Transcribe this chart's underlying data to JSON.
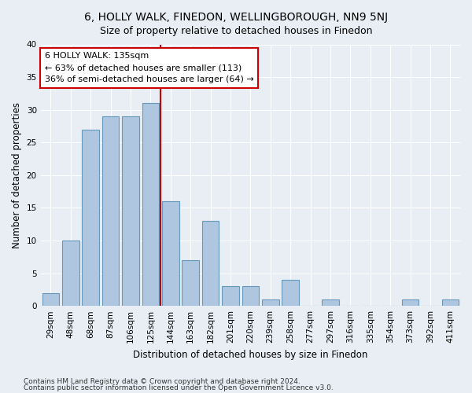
{
  "title": "6, HOLLY WALK, FINEDON, WELLINGBOROUGH, NN9 5NJ",
  "subtitle": "Size of property relative to detached houses in Finedon",
  "xlabel": "Distribution of detached houses by size in Finedon",
  "ylabel": "Number of detached properties",
  "categories": [
    "29sqm",
    "48sqm",
    "68sqm",
    "87sqm",
    "106sqm",
    "125sqm",
    "144sqm",
    "163sqm",
    "182sqm",
    "201sqm",
    "220sqm",
    "239sqm",
    "258sqm",
    "277sqm",
    "297sqm",
    "316sqm",
    "335sqm",
    "354sqm",
    "373sqm",
    "392sqm",
    "411sqm"
  ],
  "values": [
    2,
    10,
    27,
    29,
    29,
    31,
    16,
    7,
    13,
    3,
    3,
    1,
    4,
    0,
    1,
    0,
    0,
    0,
    1,
    0,
    1
  ],
  "bar_color": "#aec6e0",
  "bar_edge_color": "#6699bb",
  "vline_x_index": 6,
  "vline_color": "#cc0000",
  "annotation_line1": "6 HOLLY WALK: 135sqm",
  "annotation_line2": "← 63% of detached houses are smaller (113)",
  "annotation_line3": "36% of semi-detached houses are larger (64) →",
  "annotation_box_facecolor": "#ffffff",
  "annotation_box_edgecolor": "#cc0000",
  "ylim": [
    0,
    40
  ],
  "yticks": [
    0,
    5,
    10,
    15,
    20,
    25,
    30,
    35,
    40
  ],
  "footer1": "Contains HM Land Registry data © Crown copyright and database right 2024.",
  "footer2": "Contains public sector information licensed under the Open Government Licence v3.0.",
  "bg_color": "#e8eef4",
  "plot_bg_color": "#e8eef4",
  "grid_color": "#ffffff",
  "title_fontsize": 10,
  "subtitle_fontsize": 9,
  "axis_label_fontsize": 8.5,
  "tick_fontsize": 7.5,
  "annotation_fontsize": 8,
  "footer_fontsize": 6.5
}
